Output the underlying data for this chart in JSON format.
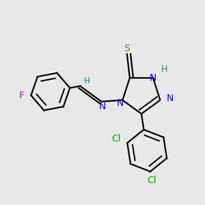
{
  "background_color": "#e8e8e8",
  "atom_colors": {
    "C": "#000000",
    "N": "#0000ff",
    "S": "#808000",
    "F": "#cc00cc",
    "Cl": "#00aa00",
    "H": "#008888"
  },
  "bond_color": "#000000",
  "lw": 1.6,
  "dbo": 0.035,
  "figsize": [
    3.0,
    3.0
  ],
  "dpi": 100,
  "xlim": [
    0.05,
    2.95
  ],
  "ylim": [
    0.05,
    2.95
  ]
}
